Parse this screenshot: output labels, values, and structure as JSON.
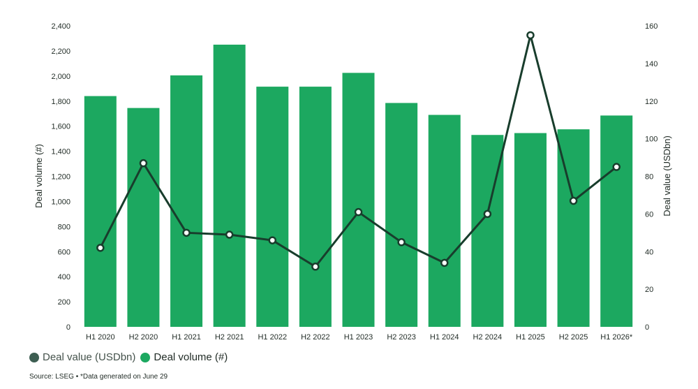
{
  "chart_data": {
    "type": "bar",
    "categories": [
      "H1 2020",
      "H2 2020",
      "H1 2021",
      "H2 2021",
      "H1 2022",
      "H2 2022",
      "H1 2023",
      "H2 2023",
      "H1 2024",
      "H2 2024",
      "H1 2025",
      "H2 2025",
      "H1 2026*"
    ],
    "series": [
      {
        "name": "Deal volume (#)",
        "type": "bar",
        "axis": "left",
        "values": [
          1840,
          1745,
          2005,
          2250,
          1915,
          1915,
          2025,
          1785,
          1690,
          1530,
          1545,
          1575,
          1685
        ]
      },
      {
        "name": "Deal value (USDbn)",
        "type": "line",
        "axis": "right",
        "values": [
          42,
          87,
          50,
          49,
          46,
          32,
          61,
          45,
          34,
          60,
          155,
          67,
          85
        ]
      }
    ],
    "ylabel": "Deal volume (#)",
    "y2label": "Deal value (USDbn)",
    "ylim": [
      0,
      2400
    ],
    "y2lim": [
      0,
      160
    ],
    "yticks": [
      "0",
      "200",
      "400",
      "600",
      "800",
      "1,000",
      "1,200",
      "1,400",
      "1,600",
      "1,800",
      "2,000",
      "2,200",
      "2,400"
    ],
    "y2ticks": [
      "0",
      "20",
      "40",
      "60",
      "80",
      "100",
      "120",
      "140",
      "160"
    ],
    "grid": false,
    "legend": "bottom-left"
  },
  "legend": {
    "value_label": "Deal value (USDbn)",
    "volume_label": "Deal volume (#)"
  },
  "colors": {
    "bar": "#1ca860",
    "line": "#183d2c",
    "marker_fill": "#ffffff",
    "text": "#1f2a24",
    "legend_value_dot": "#3d5e52",
    "legend_volume_dot": "#1ca860"
  },
  "source": "Source: LSEG • *Data generated on June 29"
}
